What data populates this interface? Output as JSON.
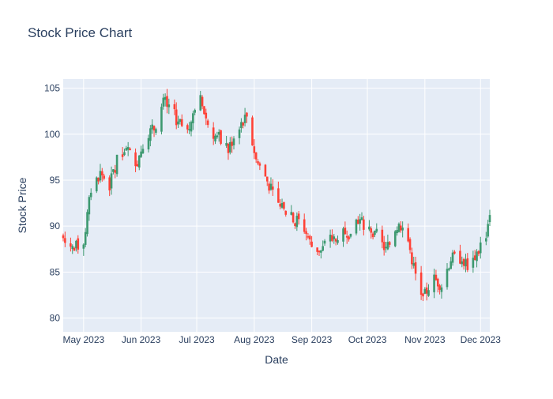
{
  "chart_data": {
    "type": "candlestick",
    "title": "Stock Price Chart",
    "xlabel": "Date",
    "ylabel": "Stock Price",
    "x_range": [
      "2023-04-20",
      "2023-12-06"
    ],
    "ylim": [
      78.5,
      106
    ],
    "yticks": [
      80,
      85,
      90,
      95,
      100,
      105
    ],
    "xticks": [
      {
        "date": "2023-05-01",
        "label": "May 2023"
      },
      {
        "date": "2023-06-01",
        "label": "Jun 2023"
      },
      {
        "date": "2023-07-01",
        "label": "Jul 2023"
      },
      {
        "date": "2023-08-01",
        "label": "Aug 2023"
      },
      {
        "date": "2023-09-01",
        "label": "Sep 2023"
      },
      {
        "date": "2023-10-01",
        "label": "Oct 2023"
      },
      {
        "date": "2023-11-01",
        "label": "Nov 2023"
      },
      {
        "date": "2023-12-01",
        "label": "Dec 2023"
      }
    ],
    "grid": true,
    "increasing_color": "#3d9970",
    "decreasing_color": "#ff4136",
    "background_color": "#e5ecf6",
    "approx_close": [
      [
        "2023-04-20",
        89.0
      ],
      [
        "2023-04-26",
        87.6
      ],
      [
        "2023-05-01",
        88.3
      ],
      [
        "2023-05-05",
        94.0
      ],
      [
        "2023-05-10",
        95.8
      ],
      [
        "2023-05-15",
        94.4
      ],
      [
        "2023-05-20",
        97.8
      ],
      [
        "2023-05-25",
        98.0
      ],
      [
        "2023-05-30",
        97.0
      ],
      [
        "2023-06-03",
        99.8
      ],
      [
        "2023-06-08",
        100.6
      ],
      [
        "2023-06-13",
        103.4
      ],
      [
        "2023-06-18",
        102.5
      ],
      [
        "2023-06-23",
        100.2
      ],
      [
        "2023-06-28",
        101.5
      ],
      [
        "2023-07-03",
        103.7
      ],
      [
        "2023-07-08",
        100.5
      ],
      [
        "2023-07-13",
        99.3
      ],
      [
        "2023-07-18",
        98.2
      ],
      [
        "2023-07-23",
        100.8
      ],
      [
        "2023-07-28",
        102.0
      ],
      [
        "2023-08-02",
        97.2
      ],
      [
        "2023-08-07",
        95.4
      ],
      [
        "2023-08-12",
        93.0
      ],
      [
        "2023-08-17",
        91.6
      ],
      [
        "2023-08-22",
        91.0
      ],
      [
        "2023-08-27",
        90.2
      ],
      [
        "2023-09-01",
        87.8
      ],
      [
        "2023-09-06",
        87.3
      ],
      [
        "2023-09-11",
        88.5
      ],
      [
        "2023-09-16",
        88.8
      ],
      [
        "2023-09-21",
        89.6
      ],
      [
        "2023-09-26",
        90.8
      ],
      [
        "2023-10-01",
        89.2
      ],
      [
        "2023-10-06",
        88.8
      ],
      [
        "2023-10-11",
        87.4
      ],
      [
        "2023-10-16",
        89.8
      ],
      [
        "2023-10-21",
        90.3
      ],
      [
        "2023-10-26",
        85.4
      ],
      [
        "2023-10-31",
        82.0
      ],
      [
        "2023-11-05",
        84.4
      ],
      [
        "2023-11-10",
        83.6
      ],
      [
        "2023-11-15",
        86.5
      ],
      [
        "2023-11-20",
        86.5
      ],
      [
        "2023-11-25",
        85.6
      ],
      [
        "2023-11-30",
        87.5
      ],
      [
        "2023-12-04",
        89.2
      ],
      [
        "2023-12-06",
        91.5
      ]
    ]
  }
}
